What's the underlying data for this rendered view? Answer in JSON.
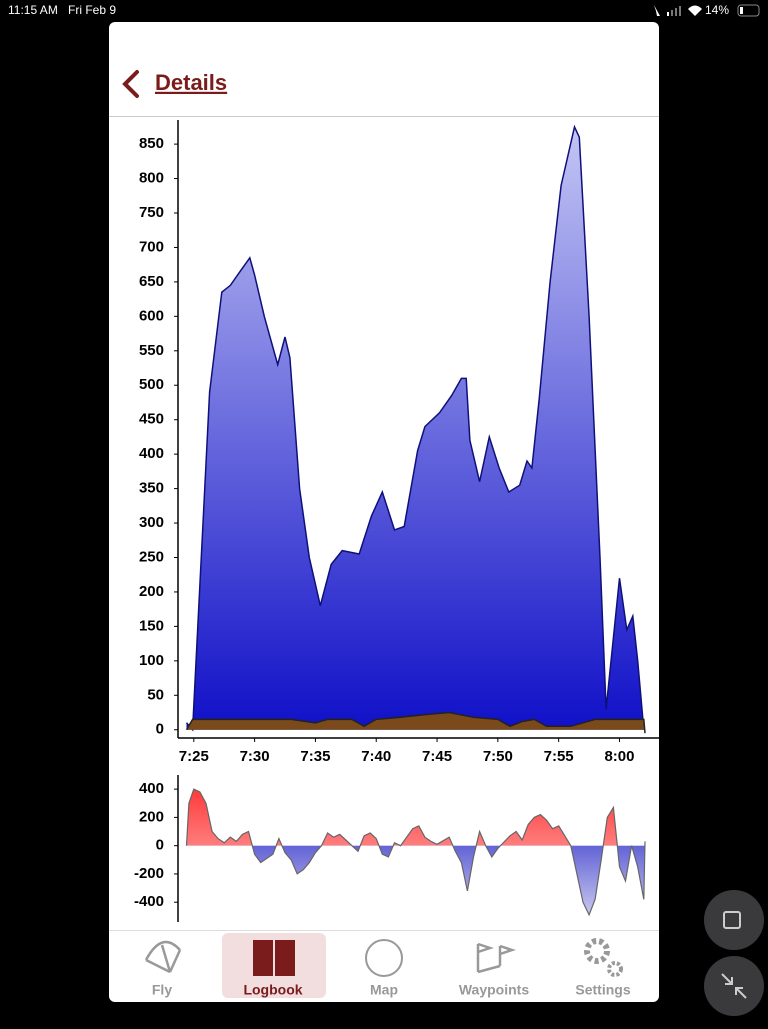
{
  "status_bar": {
    "time": "11:15 AM",
    "date": "Fri Feb 9",
    "battery": "14%"
  },
  "header": {
    "title": "Details"
  },
  "chart_data": [
    {
      "type": "area",
      "xlim": [
        443.7,
        482.1
      ],
      "xticks": [
        {
          "value": 445,
          "label": "7:25"
        },
        {
          "value": 450,
          "label": "7:30"
        },
        {
          "value": 455,
          "label": "7:35"
        },
        {
          "value": 460,
          "label": "7:40"
        },
        {
          "value": 465,
          "label": "7:45"
        },
        {
          "value": 470,
          "label": "7:50"
        },
        {
          "value": 475,
          "label": "7:55"
        },
        {
          "value": 480,
          "label": "8:00"
        }
      ],
      "ylim": [
        -12,
        885
      ],
      "yticks": [
        0,
        50,
        100,
        150,
        200,
        250,
        300,
        350,
        400,
        450,
        500,
        550,
        600,
        650,
        700,
        750,
        800,
        850
      ],
      "series": [
        {
          "color": "#1c1cc8",
          "x": [
            444.4,
            444.9,
            446.3,
            447.3,
            448.0,
            448.8,
            449.6,
            450.0,
            450.8,
            451.9,
            452.5,
            452.9,
            453.7,
            454.5,
            455.4,
            456.3,
            457.2,
            458.6,
            459.6,
            460.5,
            461.5,
            462.3,
            463.4,
            464.0,
            465.2,
            466.2,
            467.0,
            467.4,
            467.7,
            468.5,
            469.3,
            470.1,
            470.9,
            471.8,
            472.4,
            472.8,
            473.4,
            474.3,
            475.2,
            476.3,
            476.7,
            477.5,
            478.4,
            478.9,
            480.0,
            480.6,
            481.1,
            481.5,
            482.0
          ],
          "values": [
            10,
            0,
            490,
            635,
            645,
            665,
            685,
            660,
            600,
            530,
            570,
            540,
            350,
            250,
            180,
            240,
            260,
            255,
            310,
            345,
            290,
            295,
            405,
            440,
            460,
            485,
            510,
            510,
            420,
            360,
            425,
            380,
            345,
            355,
            390,
            380,
            480,
            650,
            790,
            875,
            860,
            600,
            250,
            30,
            220,
            145,
            165,
            100,
            0
          ]
        },
        {
          "color": "#7a4a1a",
          "x": [
            444.4,
            444.9,
            448,
            453,
            455,
            456,
            458,
            459,
            460,
            462,
            464,
            466,
            468,
            470,
            471,
            472,
            473,
            474,
            476,
            478,
            480,
            482,
            482.1
          ],
          "values": [
            0,
            15,
            15,
            15,
            10,
            15,
            15,
            5,
            15,
            18,
            22,
            25,
            18,
            15,
            5,
            12,
            15,
            5,
            5,
            15,
            15,
            15,
            -5
          ]
        }
      ]
    },
    {
      "type": "vario",
      "xlim": [
        443.7,
        482.1
      ],
      "ylim": [
        -540,
        500
      ],
      "yticks": [
        -400,
        -200,
        0,
        200,
        400
      ],
      "series": [
        {
          "color": "#e83030",
          "negative_color": "#1515c0",
          "x": [
            444.4,
            444.6,
            445,
            445.5,
            446,
            446.5,
            447,
            447.5,
            448,
            448.5,
            449,
            449.5,
            450,
            450.5,
            451,
            451.5,
            452,
            452.5,
            453,
            453.5,
            454,
            454.5,
            455,
            455.5,
            456,
            456.5,
            457,
            457.5,
            458,
            458.5,
            459,
            459.5,
            460,
            460.5,
            461,
            461.5,
            462,
            463,
            463.5,
            464,
            464.5,
            465,
            466,
            466.5,
            467,
            467.5,
            468,
            468.5,
            469,
            469.5,
            470,
            471,
            471.5,
            472,
            472.5,
            473,
            473.5,
            474,
            474.5,
            475,
            476,
            476.5,
            477,
            477.5,
            478,
            478.5,
            479,
            479.5,
            480,
            480.5,
            481,
            481.5,
            482,
            482.1
          ],
          "values": [
            0,
            300,
            400,
            380,
            300,
            100,
            50,
            20,
            60,
            30,
            80,
            100,
            -60,
            -120,
            -90,
            -60,
            50,
            -50,
            -100,
            -200,
            -170,
            -120,
            -50,
            0,
            90,
            60,
            80,
            40,
            0,
            -40,
            70,
            90,
            50,
            -60,
            -80,
            20,
            0,
            120,
            140,
            60,
            30,
            10,
            60,
            -40,
            -120,
            -320,
            -80,
            100,
            0,
            -80,
            -20,
            70,
            100,
            40,
            150,
            200,
            220,
            180,
            120,
            140,
            0,
            -200,
            -400,
            -490,
            -380,
            -100,
            200,
            270,
            -150,
            -250,
            0,
            -150,
            -380,
            30
          ]
        }
      ]
    }
  ],
  "tabs": [
    "Fly",
    "Logbook",
    "Map",
    "Waypoints",
    "Settings"
  ]
}
